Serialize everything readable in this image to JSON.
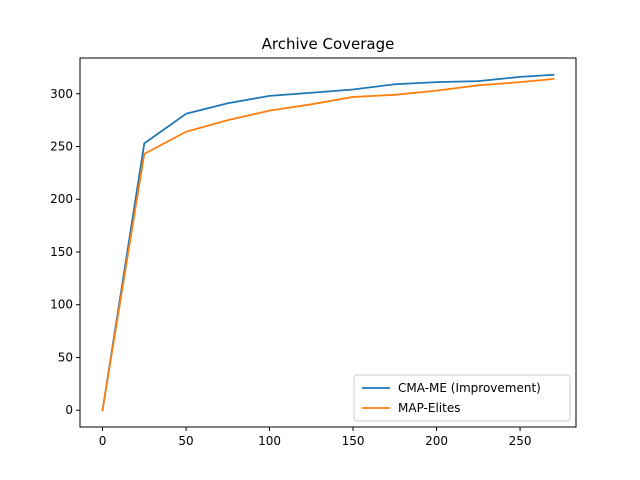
{
  "chart_data": {
    "type": "line",
    "title": "Archive Coverage",
    "xlabel": "",
    "ylabel": "",
    "xlim": [
      -13.5,
      283.5
    ],
    "ylim": [
      -15.9,
      333.9
    ],
    "xticks": [
      0,
      50,
      100,
      150,
      200,
      250
    ],
    "yticks": [
      0,
      50,
      100,
      150,
      200,
      250,
      300
    ],
    "grid": false,
    "legend_position": "lower-right",
    "series": [
      {
        "name": "CMA-ME (Improvement)",
        "color": "#1f77b4",
        "x": [
          0,
          25,
          50,
          75,
          100,
          125,
          150,
          175,
          200,
          225,
          250,
          270
        ],
        "y": [
          0,
          253,
          281,
          291,
          298,
          301,
          304,
          309,
          311,
          312,
          316,
          318
        ]
      },
      {
        "name": "MAP-Elites",
        "color": "#ff7f0e",
        "x": [
          0,
          25,
          50,
          75,
          100,
          125,
          150,
          175,
          200,
          225,
          250,
          270
        ],
        "y": [
          0,
          243,
          264,
          275,
          284,
          290,
          297,
          299,
          303,
          308,
          311,
          314
        ]
      }
    ]
  }
}
